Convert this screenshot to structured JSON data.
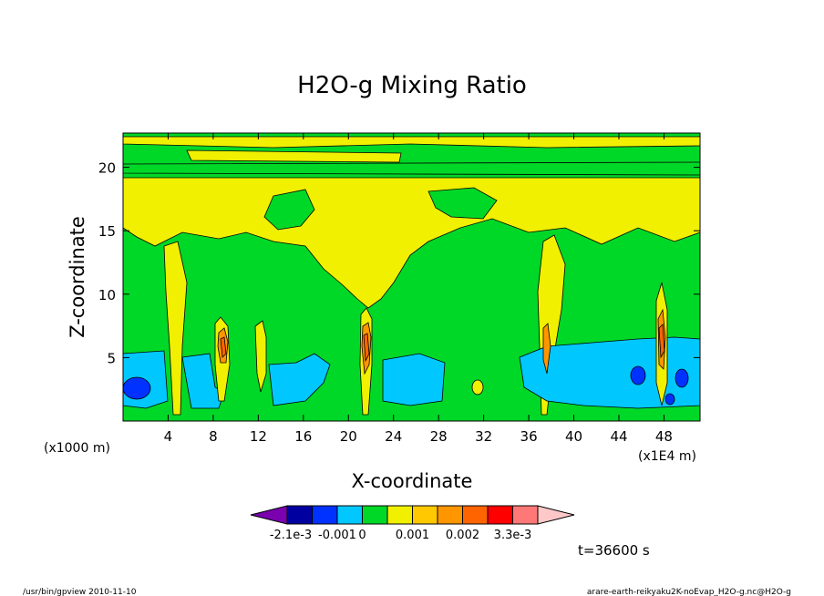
{
  "chart_data": {
    "type": "heatmap",
    "title": "H2O-g Mixing Ratio",
    "xlabel": "X-coordinate",
    "ylabel": "Z-coordinate",
    "x_unit_left": "(x1000 m)",
    "x_unit_right": "(x1E4 m)",
    "x_ticks": [
      "4",
      "8",
      "12",
      "16",
      "20",
      "24",
      "28",
      "32",
      "36",
      "40",
      "44",
      "48"
    ],
    "x_tick_values": [
      4,
      8,
      12,
      16,
      20,
      24,
      28,
      32,
      36,
      40,
      44,
      48
    ],
    "y_ticks": [
      "5",
      "10",
      "15",
      "20"
    ],
    "y_tick_values": [
      5,
      10,
      15,
      20
    ],
    "xlim": [
      0,
      51.2
    ],
    "ylim": [
      0,
      22.7
    ],
    "time_label": "t=36600 s",
    "colorbar": {
      "colors": [
        "#7b00b0",
        "#0000a0",
        "#0032ff",
        "#00c8ff",
        "#00d828",
        "#f0f000",
        "#ffc800",
        "#ff9600",
        "#ff6400",
        "#ff0000",
        "#ff7878",
        "#ffc8c8"
      ],
      "labels": [
        "-2.1e-3",
        "-0.001",
        "0",
        "0.001",
        "0.002",
        "3.3e-3"
      ]
    }
  },
  "footer": {
    "left": "/usr/bin/gpview  2010-11-10",
    "right": "arare-earth-reikyaku2K-noEvap_H2O-g.nc@H2O-g"
  }
}
